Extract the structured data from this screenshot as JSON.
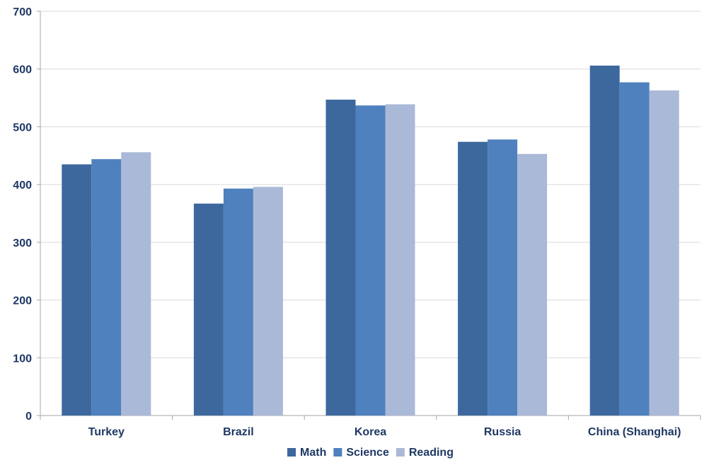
{
  "chart_data": {
    "type": "bar",
    "title": "",
    "xlabel": "",
    "ylabel": "",
    "categories": [
      "Turkey",
      "Brazil",
      "Korea",
      "Russia",
      "China (Shanghai)"
    ],
    "series": [
      {
        "name": "Math",
        "values": [
          435,
          367,
          547,
          474,
          606
        ],
        "color": "#3d689e"
      },
      {
        "name": "Science",
        "values": [
          444,
          393,
          537,
          478,
          577
        ],
        "color": "#4e81bd"
      },
      {
        "name": "Reading",
        "values": [
          456,
          396,
          539,
          453,
          563
        ],
        "color": "#abb9d8"
      }
    ],
    "ylim": [
      0,
      700
    ],
    "yticks": [
      "0",
      "100",
      "200",
      "300",
      "400",
      "500",
      "600",
      "700"
    ],
    "grid": true,
    "legend_position": "bottom-center"
  }
}
